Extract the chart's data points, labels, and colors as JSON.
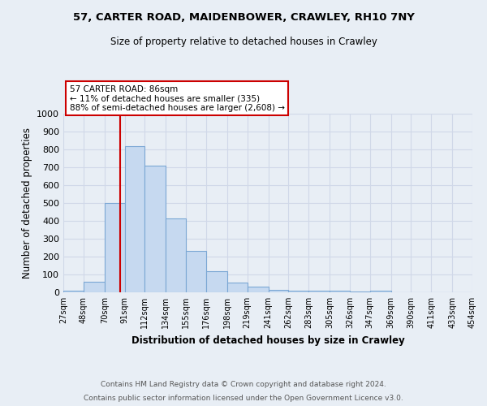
{
  "title_line1": "57, CARTER ROAD, MAIDENBOWER, CRAWLEY, RH10 7NY",
  "title_line2": "Size of property relative to detached houses in Crawley",
  "xlabel": "Distribution of detached houses by size in Crawley",
  "ylabel": "Number of detached properties",
  "bin_edges": [
    27,
    48,
    70,
    91,
    112,
    134,
    155,
    176,
    198,
    219,
    241,
    262,
    283,
    305,
    326,
    347,
    369,
    390,
    411,
    433,
    454
  ],
  "bar_heights": [
    8,
    57,
    500,
    820,
    710,
    415,
    230,
    117,
    55,
    33,
    15,
    10,
    10,
    8,
    5,
    8,
    0,
    0,
    0,
    0
  ],
  "bar_color": "#c6d9f0",
  "bar_edge_color": "#7ba7d4",
  "red_line_x": 86,
  "red_line_color": "#cc0000",
  "annotation_line1": "57 CARTER ROAD: 86sqm",
  "annotation_line2": "← 11% of detached houses are smaller (335)",
  "annotation_line3": "88% of semi-detached houses are larger (2,608) →",
  "annotation_box_color": "#ffffff",
  "annotation_box_edge_color": "#cc0000",
  "ylim": [
    0,
    1000
  ],
  "yticks": [
    0,
    100,
    200,
    300,
    400,
    500,
    600,
    700,
    800,
    900,
    1000
  ],
  "grid_color": "#d0d8e8",
  "background_color": "#e8eef5",
  "footnote_line1": "Contains HM Land Registry data © Crown copyright and database right 2024.",
  "footnote_line2": "Contains public sector information licensed under the Open Government Licence v3.0.",
  "tick_labels": [
    "27sqm",
    "48sqm",
    "70sqm",
    "91sqm",
    "112sqm",
    "134sqm",
    "155sqm",
    "176sqm",
    "198sqm",
    "219sqm",
    "241sqm",
    "262sqm",
    "283sqm",
    "305sqm",
    "326sqm",
    "347sqm",
    "369sqm",
    "390sqm",
    "411sqm",
    "433sqm",
    "454sqm"
  ]
}
